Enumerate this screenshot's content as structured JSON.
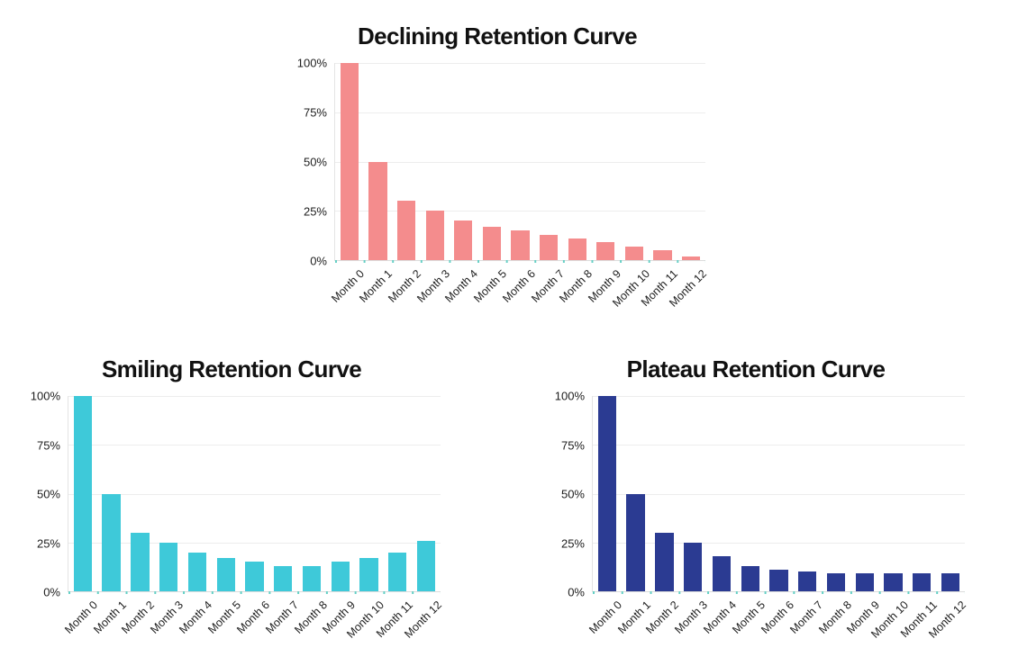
{
  "page": {
    "background": "#FFFFFF"
  },
  "axis_style": {
    "tick_mark_color": "#65CFC5",
    "gridline_color": "#EDEDED",
    "label_color": "#1D1D1D",
    "title_color": "#111111"
  },
  "chart_data": [
    {
      "type": "bar",
      "title": "Declining Retention Curve",
      "categories": [
        "Month 0",
        "Month 1",
        "Month 2",
        "Month 3",
        "Month 4",
        "Month 5",
        "Month 6",
        "Month 7",
        "Month 8",
        "Month 9",
        "Month 10",
        "Month 11",
        "Month 12"
      ],
      "values": [
        100,
        50,
        30,
        25,
        20,
        17,
        15,
        13,
        11,
        9,
        7,
        5,
        2
      ],
      "bar_color": "#F48C8D",
      "xlabel": "",
      "ylabel": "",
      "ylim": [
        0,
        100
      ],
      "y_tick_labels": [
        "100%",
        "75%",
        "50%",
        "25%",
        "0%"
      ],
      "grid": true,
      "legend": false
    },
    {
      "type": "bar",
      "title": "Smiling Retention Curve",
      "categories": [
        "Month 0",
        "Month 1",
        "Month 2",
        "Month 3",
        "Month 4",
        "Month 5",
        "Month 6",
        "Month 7",
        "Month 8",
        "Month 9",
        "Month 10",
        "Month 11",
        "Month 12"
      ],
      "values": [
        100,
        50,
        30,
        25,
        20,
        17,
        15,
        13,
        13,
        15,
        17,
        20,
        26
      ],
      "bar_color": "#3EC9D9",
      "xlabel": "",
      "ylabel": "",
      "ylim": [
        0,
        100
      ],
      "y_tick_labels": [
        "100%",
        "75%",
        "50%",
        "25%",
        "0%"
      ],
      "grid": true,
      "legend": false
    },
    {
      "type": "bar",
      "title": "Plateau Retention Curve",
      "categories": [
        "Month 0",
        "Month 1",
        "Month 2",
        "Month 3",
        "Month 4",
        "Month 5",
        "Month 6",
        "Month 7",
        "Month 8",
        "Month 9",
        "Month 10",
        "Month 11",
        "Month 12"
      ],
      "values": [
        100,
        50,
        30,
        25,
        18,
        13,
        11,
        10,
        9,
        9,
        9,
        9,
        9
      ],
      "bar_color": "#2B3B92",
      "xlabel": "",
      "ylabel": "",
      "ylim": [
        0,
        100
      ],
      "y_tick_labels": [
        "100%",
        "75%",
        "50%",
        "25%",
        "0%"
      ],
      "grid": true,
      "legend": false
    }
  ]
}
